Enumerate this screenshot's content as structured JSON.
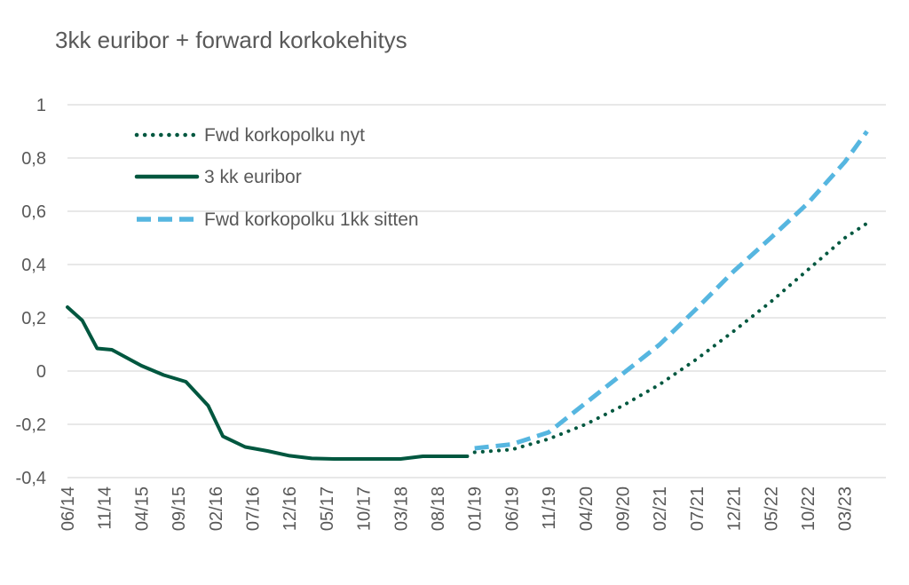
{
  "chart_data": {
    "type": "line",
    "title": "3kk euribor + forward korkokehitys",
    "xlabel": "",
    "ylabel": "",
    "ylim": [
      -0.4,
      1
    ],
    "yticks": [
      -0.4,
      -0.2,
      0,
      0.2,
      0.4,
      0.6,
      0.8,
      1
    ],
    "ytick_labels": [
      "-0,4",
      "-0,2",
      "0",
      "0,2",
      "0,4",
      "0,6",
      "0,8",
      "1"
    ],
    "x": [
      "06/14",
      "11/14",
      "04/15",
      "09/15",
      "02/16",
      "07/16",
      "12/16",
      "05/17",
      "10/17",
      "03/18",
      "08/18",
      "01/19",
      "06/19",
      "11/19",
      "04/20",
      "09/20",
      "02/21",
      "07/21",
      "12/21",
      "05/22",
      "10/22",
      "03/23"
    ],
    "grid": true,
    "legend_position": "top-left",
    "series": [
      {
        "name": "Fwd korkopolku nyt",
        "color": "#00573f",
        "style": "dotted",
        "points": [
          [
            "01/19",
            -0.305
          ],
          [
            "06/19",
            -0.295
          ],
          [
            "11/19",
            -0.255
          ],
          [
            "04/20",
            -0.2
          ],
          [
            "09/20",
            -0.13
          ],
          [
            "02/21",
            -0.05
          ],
          [
            "07/21",
            0.045
          ],
          [
            "12/21",
            0.15
          ],
          [
            "05/22",
            0.26
          ],
          [
            "10/22",
            0.38
          ],
          [
            "03/23",
            0.5
          ],
          [
            "06/23",
            0.555
          ]
        ]
      },
      {
        "name": "3 kk euribor",
        "color": "#00573f",
        "style": "solid",
        "points": [
          [
            "06/14",
            0.24
          ],
          [
            "08/14",
            0.19
          ],
          [
            "10/14",
            0.085
          ],
          [
            "12/14",
            0.08
          ],
          [
            "02/15",
            0.05
          ],
          [
            "04/15",
            0.02
          ],
          [
            "07/15",
            -0.015
          ],
          [
            "10/15",
            -0.04
          ],
          [
            "01/16",
            -0.13
          ],
          [
            "03/16",
            -0.245
          ],
          [
            "06/16",
            -0.285
          ],
          [
            "09/16",
            -0.3
          ],
          [
            "12/16",
            -0.318
          ],
          [
            "03/17",
            -0.328
          ],
          [
            "06/17",
            -0.33
          ],
          [
            "10/17",
            -0.33
          ],
          [
            "03/18",
            -0.33
          ],
          [
            "06/18",
            -0.32
          ],
          [
            "09/18",
            -0.32
          ],
          [
            "12/18",
            -0.32
          ]
        ]
      },
      {
        "name": "Fwd korkopolku 1kk sitten",
        "color": "#56b6e0",
        "style": "dashed",
        "points": [
          [
            "01/19",
            -0.29
          ],
          [
            "06/19",
            -0.275
          ],
          [
            "11/19",
            -0.23
          ],
          [
            "04/20",
            -0.12
          ],
          [
            "09/20",
            -0.01
          ],
          [
            "02/21",
            0.1
          ],
          [
            "07/21",
            0.235
          ],
          [
            "12/21",
            0.375
          ],
          [
            "05/22",
            0.5
          ],
          [
            "10/22",
            0.63
          ],
          [
            "03/23",
            0.785
          ],
          [
            "06/23",
            0.9
          ]
        ]
      }
    ]
  }
}
